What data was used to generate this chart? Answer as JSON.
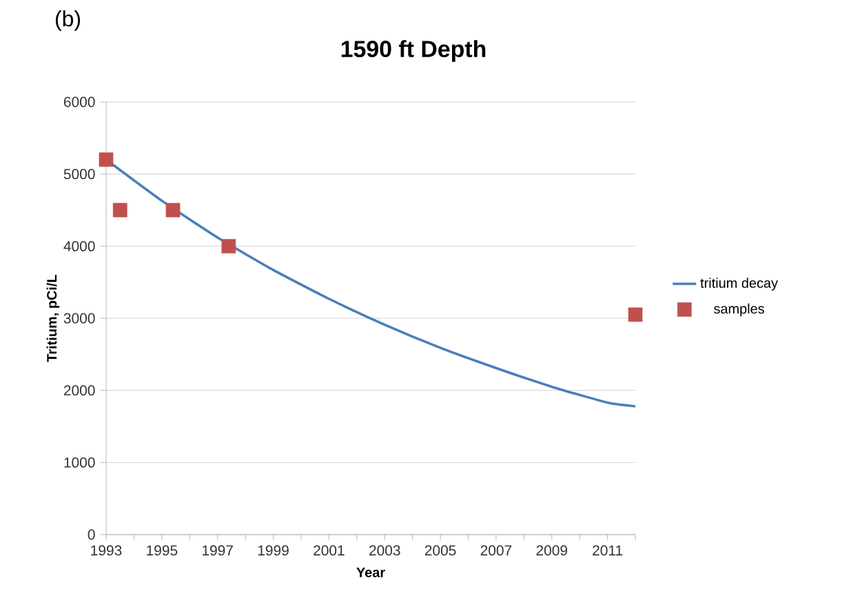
{
  "chart_data": {
    "type": "line",
    "title": "1590 ft Depth",
    "xlabel": "Year",
    "ylabel": "Tritium, pCi/L",
    "annotations": [
      "(b)"
    ],
    "series": [
      {
        "name": "tritium decay",
        "color": "#4a7ebb",
        "marker": "none",
        "line_style": "solid",
        "x": [
          1993,
          1995,
          1997,
          1999,
          2001,
          2003,
          2005,
          2007,
          2009,
          2011,
          2012
        ],
        "values": [
          5200,
          4630,
          4120,
          3670,
          3270,
          2910,
          2590,
          2310,
          2050,
          1830,
          1780
        ]
      },
      {
        "name": "samples",
        "type": "scatter",
        "color": "#c0504d",
        "marker": "square",
        "x": [
          1993,
          1993.5,
          1995.4,
          1997.4,
          2012
        ],
        "values": [
          5200,
          4500,
          4500,
          4000,
          3050
        ]
      }
    ],
    "xlim": [
      1993,
      2012
    ],
    "ylim": [
      0,
      6000
    ],
    "xticks": [
      1993,
      {
        "value": 1994,
        "label": null
      },
      1995,
      {
        "value": 1996,
        "label": null
      },
      1997,
      {
        "value": 1998,
        "label": null
      },
      1999,
      {
        "value": 2000,
        "label": null
      },
      2001,
      {
        "value": 2002,
        "label": null
      },
      2003,
      {
        "value": 2004,
        "label": null
      },
      2005,
      {
        "value": 2006,
        "label": null
      },
      2007,
      {
        "value": 2008,
        "label": null
      },
      2009,
      {
        "value": 2010,
        "label": null
      },
      2011,
      {
        "value": 2012,
        "label": null
      }
    ],
    "yticks": [
      0,
      1000,
      2000,
      3000,
      4000,
      5000,
      6000
    ],
    "grid": "y",
    "legend": "right"
  }
}
